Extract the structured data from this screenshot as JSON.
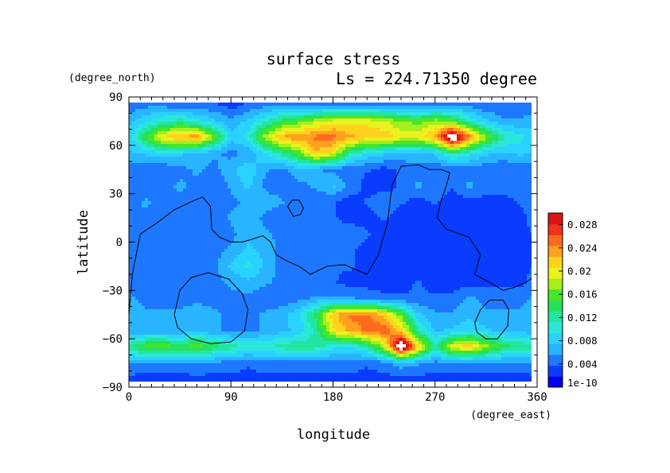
{
  "chart_data": {
    "type": "heatmap",
    "title": "surface stress",
    "subtitle": "Ls = 224.71350 degree",
    "xlabel": "longitude",
    "ylabel": "latitude",
    "x_unit": "(degree_east)",
    "y_unit": "(degree_north)",
    "xlim": [
      0,
      360
    ],
    "ylim": [
      -90,
      90
    ],
    "x_ticks": [
      "0",
      "90",
      "180",
      "270",
      "360"
    ],
    "x_tick_values": [
      0,
      90,
      180,
      270,
      360
    ],
    "y_ticks": [
      "90",
      "60",
      "30",
      "0",
      "-30",
      "-60",
      "-90"
    ],
    "y_tick_values": [
      90,
      60,
      30,
      0,
      -30,
      -60,
      -90
    ],
    "colorbar": {
      "labels": [
        "0.028",
        "0.024",
        "0.02",
        "0.016",
        "0.012",
        "0.008",
        "0.004",
        "1e-10"
      ],
      "values": [
        0.028,
        0.024,
        0.02,
        0.016,
        0.012,
        0.008,
        0.004,
        0
      ],
      "range": [
        0,
        0.03
      ],
      "colors": [
        "#0000ee",
        "#0a3cff",
        "#1e78ff",
        "#28b4ff",
        "#2ad2ff",
        "#2ce6dc",
        "#22e6a0",
        "#28e05a",
        "#46e628",
        "#a6ee1e",
        "#eaf21e",
        "#ffd21e",
        "#ffa01e",
        "#ff6a1e",
        "#f0321e",
        "#dc1414"
      ]
    },
    "field_lat": [
      85,
      75,
      65,
      55,
      45,
      35,
      25,
      15,
      5,
      -5,
      -15,
      -25,
      -35,
      -45,
      -55,
      -65,
      -75,
      -85
    ],
    "field_lon": [
      0,
      15,
      30,
      45,
      60,
      75,
      90,
      105,
      120,
      135,
      150,
      165,
      180,
      195,
      210,
      225,
      240,
      255,
      270,
      285,
      300,
      315,
      330,
      345,
      360
    ],
    "field_values": [
      [
        0.004,
        0.005,
        0.005,
        0.004,
        0.004,
        0.004,
        0.003,
        0.004,
        0.005,
        0.005,
        0.004,
        0.004,
        0.005,
        0.005,
        0.005,
        0.004,
        0.004,
        0.004,
        0.004,
        0.005,
        0.005,
        0.004,
        0.004,
        0.004,
        0.004
      ],
      [
        0.007,
        0.009,
        0.011,
        0.012,
        0.01,
        0.008,
        0.006,
        0.008,
        0.011,
        0.014,
        0.016,
        0.018,
        0.02,
        0.02,
        0.02,
        0.019,
        0.017,
        0.016,
        0.018,
        0.016,
        0.011,
        0.008,
        0.006,
        0.006,
        0.007
      ],
      [
        0.008,
        0.015,
        0.021,
        0.023,
        0.024,
        0.017,
        0.008,
        0.01,
        0.018,
        0.023,
        0.024,
        0.025,
        0.025,
        0.023,
        0.022,
        0.022,
        0.02,
        0.02,
        0.023,
        0.034,
        0.025,
        0.017,
        0.012,
        0.01,
        0.008
      ],
      [
        0.007,
        0.008,
        0.009,
        0.008,
        0.007,
        0.006,
        0.005,
        0.006,
        0.009,
        0.012,
        0.016,
        0.022,
        0.02,
        0.012,
        0.009,
        0.008,
        0.007,
        0.007,
        0.008,
        0.012,
        0.01,
        0.008,
        0.007,
        0.008,
        0.007
      ],
      [
        0.005,
        0.004,
        0.004,
        0.005,
        0.006,
        0.005,
        0.007,
        0.009,
        0.006,
        0.005,
        0.007,
        0.006,
        0.005,
        0.004,
        0.004,
        0.003,
        0.004,
        0.005,
        0.004,
        0.004,
        0.005,
        0.004,
        0.004,
        0.004,
        0.005
      ],
      [
        0.004,
        0.004,
        0.005,
        0.006,
        0.005,
        0.004,
        0.006,
        0.008,
        0.005,
        0.004,
        0.005,
        0.006,
        0.008,
        0.005,
        0.003,
        0.003,
        0.004,
        0.006,
        0.005,
        0.004,
        0.006,
        0.005,
        0.005,
        0.004,
        0.004
      ],
      [
        0.005,
        0.006,
        0.005,
        0.005,
        0.004,
        0.004,
        0.005,
        0.006,
        0.007,
        0.006,
        0.004,
        0.004,
        0.004,
        0.003,
        0.004,
        0.005,
        0.004,
        0.003,
        0.004,
        0.003,
        0.003,
        0.003,
        0.003,
        0.004,
        0.005
      ],
      [
        0.005,
        0.005,
        0.004,
        0.004,
        0.005,
        0.004,
        0.006,
        0.007,
        0.005,
        0.004,
        0.004,
        0.005,
        0.004,
        0.003,
        0.003,
        0.004,
        0.003,
        0.002,
        0.003,
        0.003,
        0.003,
        0.002,
        0.002,
        0.003,
        0.005
      ],
      [
        0.004,
        0.004,
        0.005,
        0.005,
        0.004,
        0.004,
        0.005,
        0.007,
        0.006,
        0.005,
        0.004,
        0.004,
        0.004,
        0.005,
        0.004,
        0.003,
        0.003,
        0.002,
        0.002,
        0.003,
        0.002,
        0.002,
        0.002,
        0.003,
        0.004
      ],
      [
        0.004,
        0.005,
        0.005,
        0.004,
        0.004,
        0.005,
        0.006,
        0.008,
        0.007,
        0.005,
        0.005,
        0.004,
        0.004,
        0.004,
        0.003,
        0.003,
        0.002,
        0.002,
        0.002,
        0.002,
        0.002,
        0.002,
        0.002,
        0.003,
        0.004
      ],
      [
        0.004,
        0.004,
        0.004,
        0.004,
        0.005,
        0.005,
        0.008,
        0.01,
        0.007,
        0.005,
        0.004,
        0.004,
        0.004,
        0.004,
        0.003,
        0.003,
        0.003,
        0.003,
        0.002,
        0.002,
        0.002,
        0.002,
        0.002,
        0.003,
        0.004
      ],
      [
        0.005,
        0.004,
        0.004,
        0.004,
        0.005,
        0.005,
        0.006,
        0.007,
        0.006,
        0.005,
        0.004,
        0.004,
        0.004,
        0.003,
        0.003,
        0.003,
        0.003,
        0.004,
        0.003,
        0.003,
        0.003,
        0.003,
        0.003,
        0.003,
        0.005
      ],
      [
        0.006,
        0.005,
        0.005,
        0.005,
        0.005,
        0.005,
        0.005,
        0.005,
        0.004,
        0.004,
        0.005,
        0.006,
        0.006,
        0.006,
        0.005,
        0.004,
        0.004,
        0.004,
        0.004,
        0.004,
        0.006,
        0.005,
        0.005,
        0.005,
        0.006
      ],
      [
        0.007,
        0.006,
        0.006,
        0.006,
        0.007,
        0.006,
        0.005,
        0.005,
        0.006,
        0.007,
        0.009,
        0.014,
        0.022,
        0.025,
        0.025,
        0.022,
        0.016,
        0.008,
        0.006,
        0.006,
        0.007,
        0.006,
        0.006,
        0.006,
        0.007
      ],
      [
        0.006,
        0.006,
        0.006,
        0.006,
        0.007,
        0.006,
        0.005,
        0.005,
        0.006,
        0.007,
        0.008,
        0.012,
        0.02,
        0.023,
        0.025,
        0.026,
        0.022,
        0.012,
        0.007,
        0.008,
        0.009,
        0.008,
        0.007,
        0.007,
        0.006
      ],
      [
        0.012,
        0.016,
        0.016,
        0.015,
        0.016,
        0.014,
        0.012,
        0.011,
        0.011,
        0.012,
        0.013,
        0.012,
        0.01,
        0.009,
        0.012,
        0.018,
        0.034,
        0.022,
        0.012,
        0.02,
        0.022,
        0.018,
        0.014,
        0.013,
        0.012
      ],
      [
        0.006,
        0.005,
        0.005,
        0.005,
        0.006,
        0.005,
        0.005,
        0.004,
        0.005,
        0.005,
        0.005,
        0.005,
        0.005,
        0.005,
        0.004,
        0.005,
        0.007,
        0.006,
        0.005,
        0.005,
        0.005,
        0.005,
        0.005,
        0.005,
        0.006
      ],
      [
        0.003,
        0.003,
        0.003,
        0.003,
        0.003,
        0.003,
        0.003,
        0.003,
        0.003,
        0.003,
        0.003,
        0.003,
        0.003,
        0.003,
        0.003,
        0.003,
        0.003,
        0.003,
        0.003,
        0.003,
        0.003,
        0.003,
        0.003,
        0.003,
        0.003
      ]
    ],
    "contours": [
      [
        [
          0,
          -45
        ],
        [
          3,
          -20
        ],
        [
          10,
          5
        ],
        [
          25,
          12
        ],
        [
          40,
          20
        ],
        [
          55,
          25
        ],
        [
          65,
          28
        ],
        [
          72,
          22
        ],
        [
          73,
          8
        ],
        [
          80,
          3
        ],
        [
          90,
          0
        ],
        [
          100,
          0
        ],
        [
          110,
          2
        ],
        [
          118,
          4
        ],
        [
          125,
          0
        ],
        [
          130,
          -8
        ],
        [
          140,
          -12
        ],
        [
          150,
          -15
        ],
        [
          160,
          -20
        ],
        [
          175,
          -15
        ],
        [
          190,
          -14
        ],
        [
          200,
          -17
        ],
        [
          210,
          -20
        ],
        [
          220,
          -8
        ],
        [
          228,
          12
        ],
        [
          232,
          35
        ],
        [
          240,
          47
        ],
        [
          255,
          48
        ],
        [
          265,
          45
        ],
        [
          275,
          45
        ],
        [
          283,
          43
        ],
        [
          280,
          35
        ],
        [
          275,
          25
        ],
        [
          272,
          15
        ],
        [
          280,
          8
        ],
        [
          300,
          3
        ],
        [
          310,
          -8
        ],
        [
          305,
          -20
        ],
        [
          318,
          -25
        ],
        [
          330,
          -30
        ],
        [
          340,
          -28
        ],
        [
          350,
          -25
        ],
        [
          360,
          -20
        ]
      ],
      [
        [
          140,
          22
        ],
        [
          144,
          26
        ],
        [
          150,
          26
        ],
        [
          154,
          21
        ],
        [
          151,
          17
        ],
        [
          145,
          16
        ],
        [
          140,
          22
        ]
      ],
      [
        [
          40,
          -45
        ],
        [
          45,
          -30
        ],
        [
          55,
          -22
        ],
        [
          70,
          -19
        ],
        [
          88,
          -23
        ],
        [
          100,
          -32
        ],
        [
          105,
          -42
        ],
        [
          102,
          -55
        ],
        [
          90,
          -62
        ],
        [
          72,
          -63
        ],
        [
          55,
          -60
        ],
        [
          43,
          -53
        ],
        [
          40,
          -45
        ]
      ],
      [
        [
          305,
          -50
        ],
        [
          310,
          -42
        ],
        [
          318,
          -36
        ],
        [
          330,
          -36
        ],
        [
          335,
          -42
        ],
        [
          334,
          -52
        ],
        [
          325,
          -60
        ],
        [
          315,
          -60
        ],
        [
          307,
          -56
        ],
        [
          305,
          -50
        ]
      ]
    ]
  }
}
